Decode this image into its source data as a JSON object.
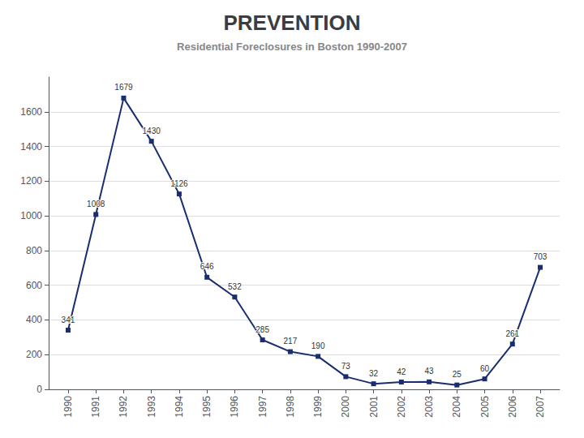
{
  "chart_data": {
    "type": "line",
    "title": "PREVENTION",
    "subtitle": "Residential Foreclosures in Boston 1990-2007",
    "x": [
      1990,
      1991,
      1992,
      1993,
      1994,
      1995,
      1996,
      1997,
      1998,
      1999,
      2000,
      2001,
      2002,
      2003,
      2004,
      2005,
      2006,
      2007
    ],
    "values": [
      341,
      1008,
      1679,
      1430,
      1126,
      646,
      532,
      285,
      217,
      190,
      73,
      32,
      42,
      43,
      25,
      60,
      261,
      703
    ],
    "color": "#1a2d6e",
    "marker": "square",
    "xlim": [
      1989.3,
      2007.7
    ],
    "xticks": [
      1990,
      1991,
      1992,
      1993,
      1994,
      1995,
      1996,
      1997,
      1998,
      1999,
      2000,
      2001,
      2002,
      2003,
      2004,
      2005,
      2006,
      2007
    ],
    "ylim": [
      0,
      1800
    ],
    "yticks": [
      0,
      200,
      400,
      600,
      800,
      1000,
      1200,
      1400,
      1600
    ],
    "grid": true,
    "data_labels": true
  }
}
